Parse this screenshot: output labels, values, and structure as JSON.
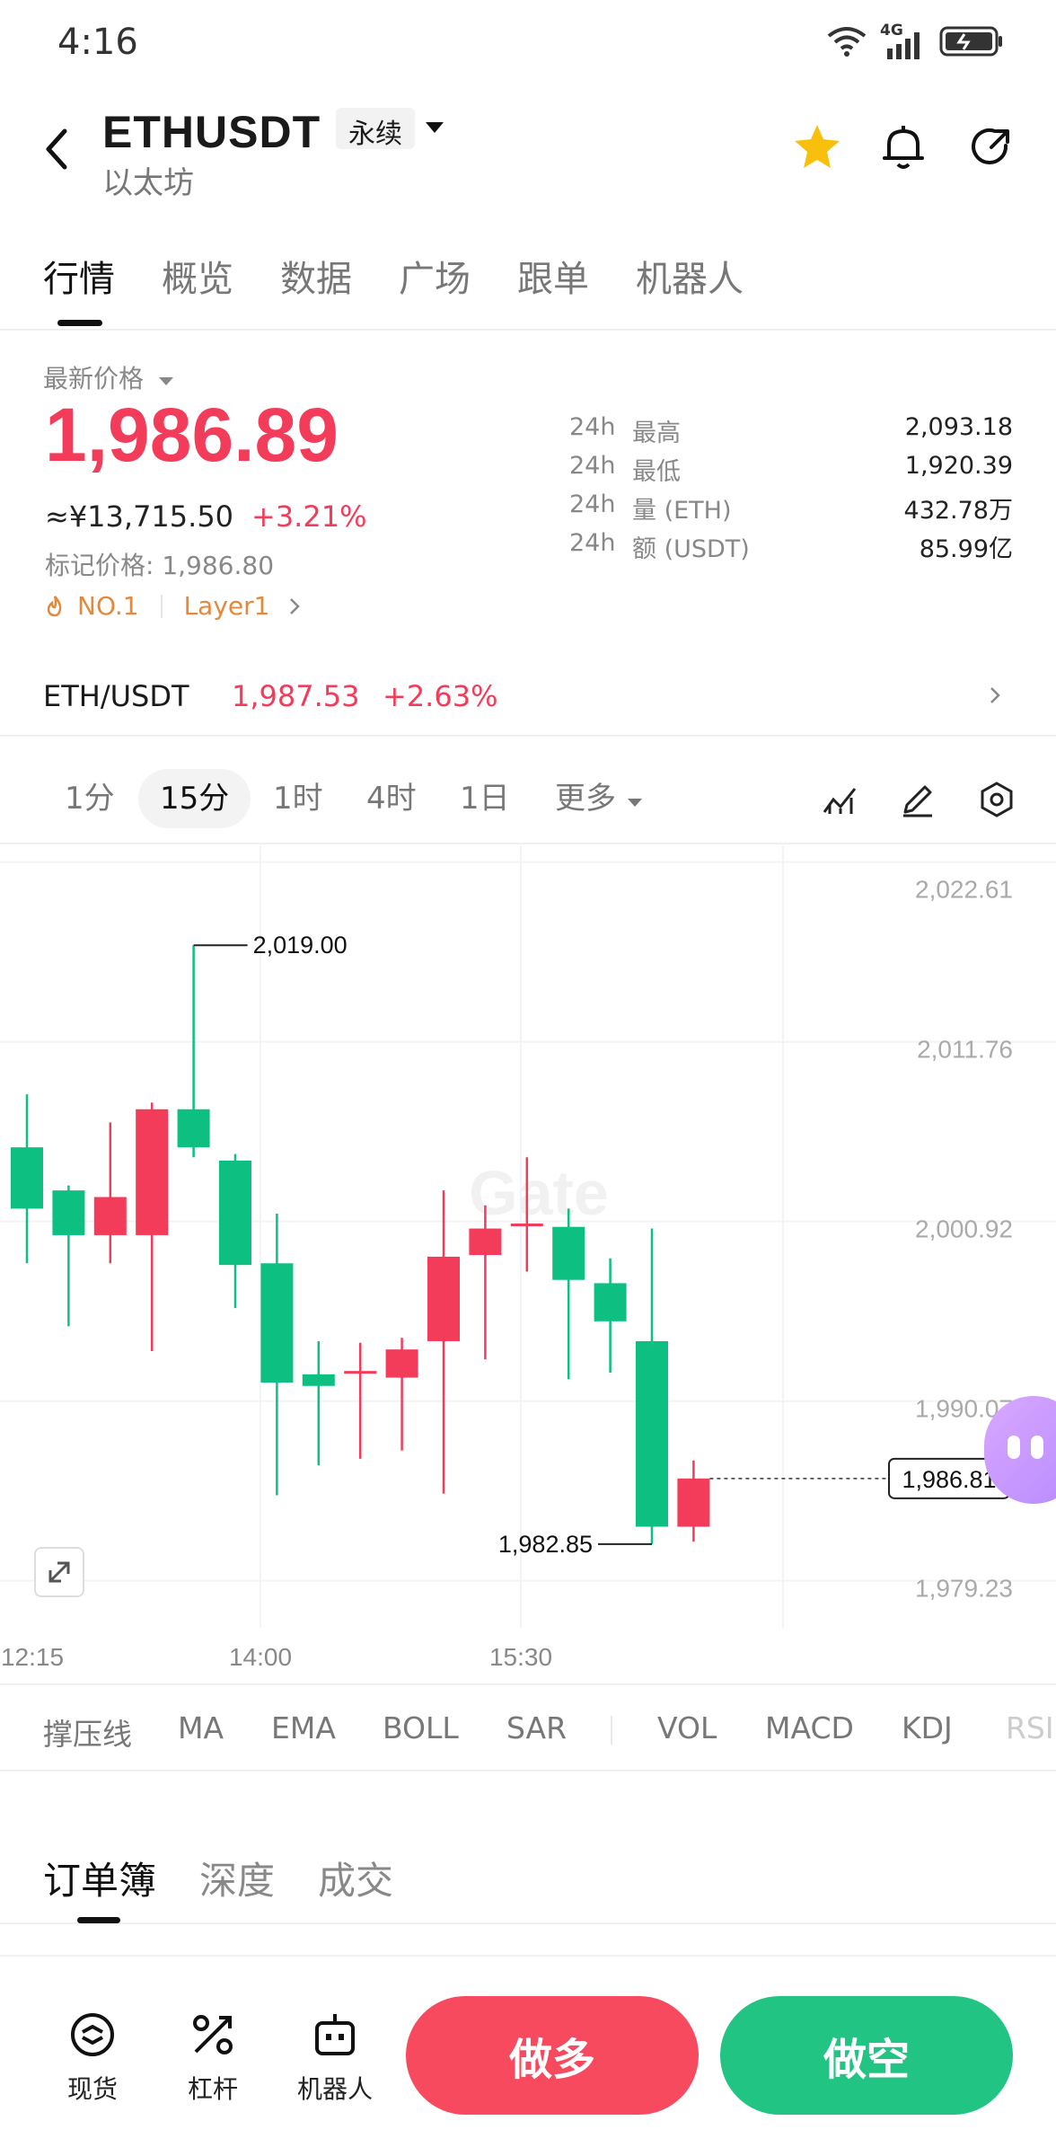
{
  "status": {
    "time": "4:16",
    "network": "4G"
  },
  "header": {
    "symbol": "ETHUSDT",
    "contract_type": "永续",
    "subname": "以太坊"
  },
  "tabs": [
    "行情",
    "概览",
    "数据",
    "广场",
    "跟单",
    "机器人"
  ],
  "price": {
    "label": "最新价格",
    "last": "1,986.89",
    "cny": "≈¥13,715.50",
    "change": "+3.21%",
    "mark": "标记价格: 1,986.80",
    "tag_rank": "NO.1",
    "tag_cat": "Layer1"
  },
  "stats": [
    {
      "k": "24h",
      "name": "最高",
      "value": "2,093.18"
    },
    {
      "k": "24h",
      "name": "最低",
      "value": "1,920.39"
    },
    {
      "k": "24h",
      "name": "量 (ETH)",
      "value": "432.78万"
    },
    {
      "k": "24h",
      "name": "额 (USDT)",
      "value": "85.99亿"
    }
  ],
  "spot_pair": {
    "name": "ETH/USDT",
    "price": "1,987.53",
    "change": "+2.63%"
  },
  "intervals": [
    "1分",
    "15分",
    "1时",
    "4时",
    "1日",
    "更多"
  ],
  "chart_data": {
    "type": "candlestick",
    "y_ticks": [
      "2,022.61",
      "2,011.76",
      "2,000.92",
      "1,990.07",
      "1,979.23"
    ],
    "x_ticks": [
      "12:15",
      "14:00",
      "15:30"
    ],
    "high_label": "2,019.00",
    "low_label": "1,982.85",
    "current_label": "1,986.81",
    "candles": [
      {
        "o": 2006.8,
        "h": 2010.0,
        "l": 1999.8,
        "c": 2003.1
      },
      {
        "o": 2004.2,
        "h": 2004.5,
        "l": 1996.0,
        "c": 2001.5
      },
      {
        "o": 2001.5,
        "h": 2008.3,
        "l": 1999.8,
        "c": 2003.8
      },
      {
        "o": 2001.5,
        "h": 2009.5,
        "l": 1994.5,
        "c": 2009.1
      },
      {
        "o": 2009.1,
        "h": 2019.0,
        "l": 2006.2,
        "c": 2006.8
      },
      {
        "o": 2006.0,
        "h": 2006.4,
        "l": 1997.1,
        "c": 1999.7
      },
      {
        "o": 1999.8,
        "h": 2002.8,
        "l": 1985.8,
        "c": 1992.6
      },
      {
        "o": 1993.1,
        "h": 1995.1,
        "l": 1987.6,
        "c": 1992.4
      },
      {
        "o": 1993.3,
        "h": 1995.0,
        "l": 1988.0,
        "c": 1993.3
      },
      {
        "o": 1992.9,
        "h": 1995.3,
        "l": 1988.5,
        "c": 1994.6
      },
      {
        "o": 1995.1,
        "h": 2004.2,
        "l": 1985.9,
        "c": 2000.2
      },
      {
        "o": 2000.3,
        "h": 2003.3,
        "l": 1994.0,
        "c": 2001.9
      },
      {
        "o": 2002.2,
        "h": 2006.2,
        "l": 1999.3,
        "c": 2002.2
      },
      {
        "o": 2002.0,
        "h": 2003.1,
        "l": 1992.8,
        "c": 1998.8
      },
      {
        "o": 1998.6,
        "h": 2000.1,
        "l": 1993.2,
        "c": 1996.3
      },
      {
        "o": 1995.1,
        "h": 2001.9,
        "l": 1982.85,
        "c": 1983.9
      },
      {
        "o": 1983.9,
        "h": 1987.9,
        "l": 1983.0,
        "c": 1986.81
      }
    ],
    "watermark": "Gate"
  },
  "indicators": [
    "撑压线",
    "MA",
    "EMA",
    "BOLL",
    "SAR",
    "VOL",
    "MACD",
    "KDJ",
    "RSI"
  ],
  "orderbook_tabs": [
    "订单簿",
    "深度",
    "成交"
  ],
  "bottom": {
    "nav": [
      "现货",
      "杠杆",
      "机器人"
    ],
    "long": "做多",
    "short": "做空"
  },
  "colors": {
    "up": "#0ebf82",
    "down": "#f23c5a",
    "long_btn": "#f84a5f",
    "short_btn": "#22c483"
  }
}
